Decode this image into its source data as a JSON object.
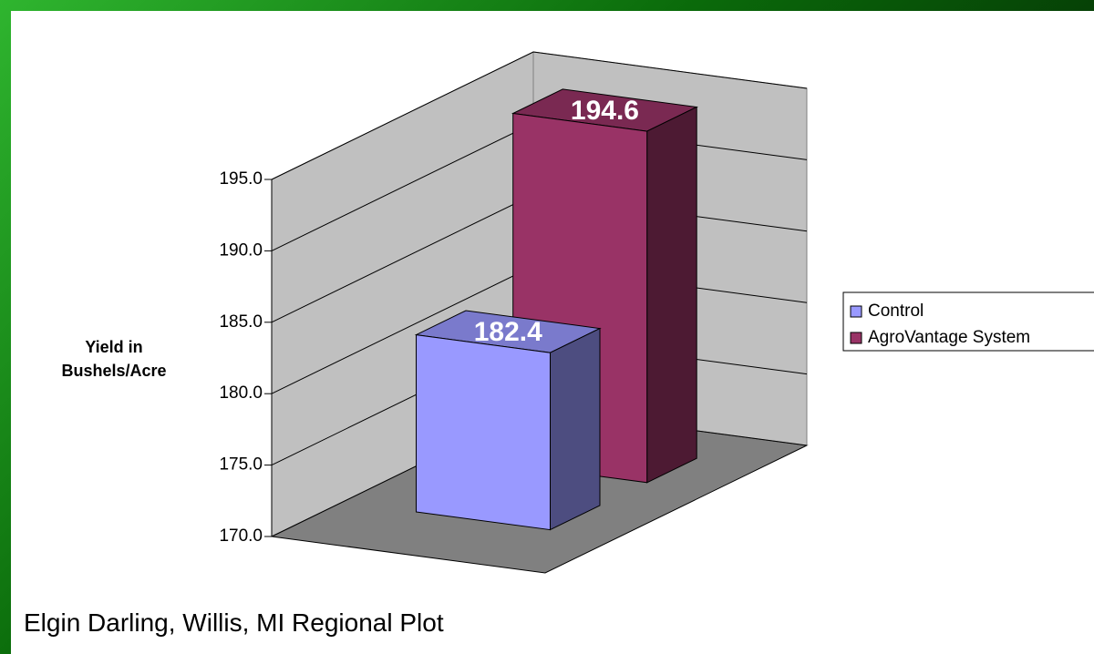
{
  "chart_data": {
    "type": "bar3d",
    "y_label": "Yield in Bushels/Acre",
    "caption": "Elgin Darling, Willis, MI Regional Plot",
    "series": [
      {
        "name": "Control",
        "color": "#9999ff",
        "values": [
          182.4
        ]
      },
      {
        "name": "AgroVantage System",
        "color": "#993366",
        "values": [
          194.6
        ]
      }
    ],
    "ylim": [
      170,
      195
    ],
    "yticks": [
      {
        "value": 170,
        "label": "170.0"
      },
      {
        "value": 175,
        "label": "175.0"
      },
      {
        "value": 180,
        "label": "180.0"
      },
      {
        "value": 185,
        "label": "185.0"
      },
      {
        "value": 190,
        "label": "190.0"
      },
      {
        "value": 195,
        "label": "195.0"
      }
    ],
    "grid": true,
    "legend": "right"
  }
}
